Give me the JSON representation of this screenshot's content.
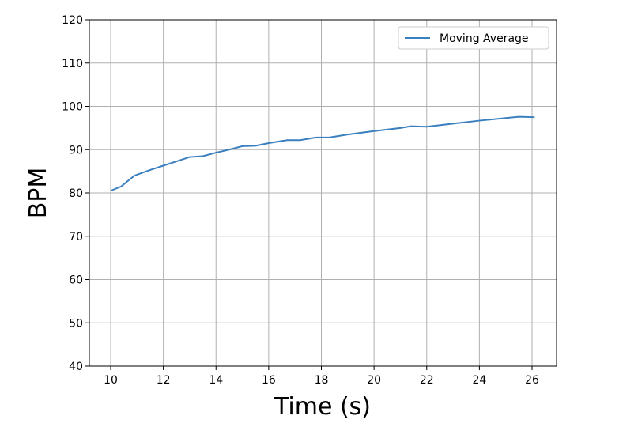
{
  "chart_data": {
    "type": "line",
    "x_label": "Time (s)",
    "y_label": "BPM",
    "x": [
      10,
      10.4,
      10.9,
      11.5,
      12,
      12.5,
      13,
      13.5,
      14,
      14.5,
      15,
      15.5,
      16,
      16.7,
      17.2,
      17.8,
      18.3,
      19,
      20,
      21,
      21.4,
      22,
      23,
      24,
      25,
      25.5,
      26.1
    ],
    "series": [
      {
        "name": "Moving Average",
        "color": "#3a7fbf",
        "values": [
          80.5,
          81.5,
          84,
          85.3,
          86.3,
          87.3,
          88.3,
          88.5,
          89.3,
          90,
          90.8,
          90.9,
          91.5,
          92.2,
          92.2,
          92.8,
          92.8,
          93.5,
          94.3,
          95,
          95.4,
          95.3,
          96,
          96.7,
          97.3,
          97.6,
          97.5
        ]
      }
    ],
    "xlim": [
      9.19,
      26.93
    ],
    "xticks": [
      10,
      12,
      14,
      16,
      18,
      20,
      22,
      24,
      26
    ],
    "ylim": [
      40,
      120
    ],
    "yticks": [
      40,
      50,
      60,
      70,
      80,
      90,
      100,
      110,
      120
    ],
    "grid": true,
    "legend": "upper right"
  }
}
